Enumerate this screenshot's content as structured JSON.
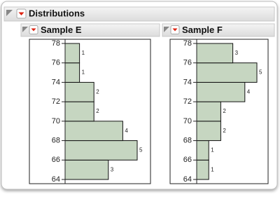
{
  "header": {
    "title": "Distributions"
  },
  "chart_data": [
    {
      "type": "histogram",
      "title": "Sample E",
      "orientation": "horizontal",
      "bins": [
        64,
        66,
        68,
        70,
        72,
        74,
        76,
        78
      ],
      "values": [
        3,
        5,
        4,
        2,
        2,
        1,
        1
      ],
      "color": "#c6d6c1",
      "ylim": [
        64,
        78
      ],
      "yticks": [
        64,
        66,
        68,
        70,
        72,
        74,
        76,
        78
      ]
    },
    {
      "type": "histogram",
      "title": "Sample F",
      "orientation": "horizontal",
      "bins": [
        64,
        66,
        68,
        70,
        72,
        74,
        76,
        78
      ],
      "values": [
        1,
        1,
        2,
        2,
        4,
        5,
        3
      ],
      "color": "#c6d6c1",
      "ylim": [
        64,
        78
      ],
      "yticks": [
        64,
        66,
        68,
        70,
        72,
        74,
        76,
        78
      ]
    }
  ]
}
